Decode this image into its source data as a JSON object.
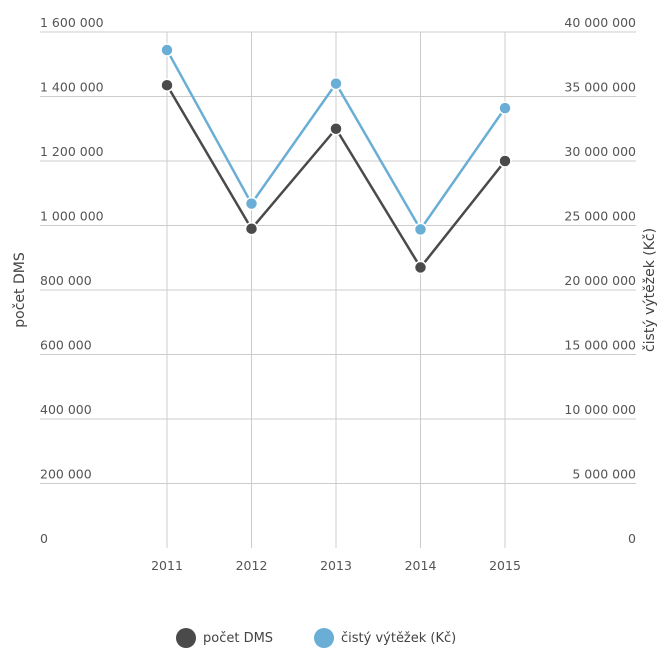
{
  "chart_data": {
    "type": "line",
    "title": "",
    "categories": [
      "2011",
      "2012",
      "2013",
      "2014",
      "2015"
    ],
    "ylabel_left": "počet DMS",
    "ylabel_right": "čistý výtěžek (Kč)",
    "ylim_left": [
      0,
      1600000
    ],
    "ylim_right": [
      0,
      40000000
    ],
    "yticks_left": [
      "0",
      "200 000",
      "400 000",
      "600 000",
      "800 000",
      "1 000 000",
      "1 200 000",
      "1 400 000",
      "1 600 000"
    ],
    "yticks_right": [
      "0",
      "5 000 000",
      "10 000 000",
      "15 000 000",
      "20 000 000",
      "25 000 000",
      "30 000 000",
      "35 000 000",
      "40 000 000"
    ],
    "grid": true,
    "legend_position": "bottom",
    "series": [
      {
        "name": "počet DMS",
        "axis": "left",
        "color": "#4a4a4a",
        "values": [
          1435000,
          990000,
          1300000,
          870000,
          1200000
        ]
      },
      {
        "name": "čistý výtěžek (Kč)",
        "axis": "right",
        "color": "#6aaed6",
        "values": [
          38600000,
          26700000,
          36000000,
          24700000,
          34100000
        ]
      }
    ]
  }
}
